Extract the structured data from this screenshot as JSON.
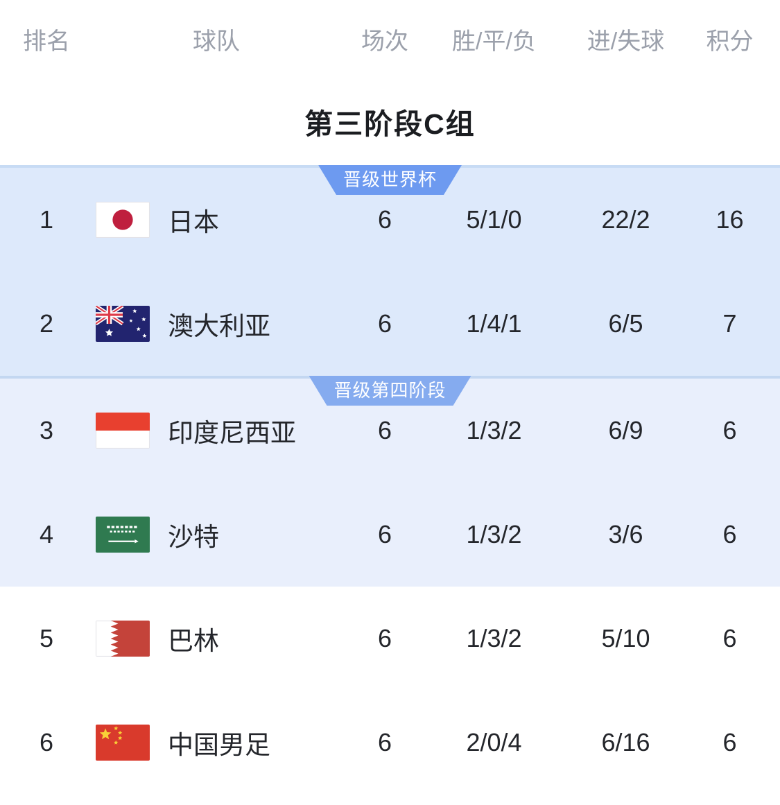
{
  "header": {
    "rank": "排名",
    "team": "球队",
    "matches": "场次",
    "wdl": "胜/平/负",
    "goals": "进/失球",
    "points": "积分"
  },
  "title": "第三阶段C组",
  "colors": {
    "header_text": "#9ba0ab",
    "row_text": "#24262b",
    "badge_world_cup": "#6d9af0",
    "badge_fourth_stage": "#85abef",
    "section_top_bg": "#dde9fb",
    "section_mid_bg": "#e9effc",
    "section_bottom_bg": "#ffffff"
  },
  "sections": [
    {
      "badge": "晋级世界杯",
      "badge_color": "#6d9af0",
      "bg": "#dde9fb",
      "border_top": "#c7dbf4",
      "rows": [
        {
          "rank": "1",
          "team": "日本",
          "flag": "japan",
          "matches": "6",
          "wdl": "5/1/0",
          "goals": "22/2",
          "points": "16"
        },
        {
          "rank": "2",
          "team": "澳大利亚",
          "flag": "australia",
          "matches": "6",
          "wdl": "1/4/1",
          "goals": "6/5",
          "points": "7"
        }
      ]
    },
    {
      "badge": "晋级第四阶段",
      "badge_color": "#85abef",
      "bg": "#e9effc",
      "border_top": "#c3d7f1",
      "rows": [
        {
          "rank": "3",
          "team": "印度尼西亚",
          "flag": "indonesia",
          "matches": "6",
          "wdl": "1/3/2",
          "goals": "6/9",
          "points": "6"
        },
        {
          "rank": "4",
          "team": "沙特",
          "flag": "saudi-arabia",
          "matches": "6",
          "wdl": "1/3/2",
          "goals": "3/6",
          "points": "6"
        }
      ]
    },
    {
      "badge": null,
      "badge_color": null,
      "bg": "#ffffff",
      "border_top": null,
      "rows": [
        {
          "rank": "5",
          "team": "巴林",
          "flag": "bahrain",
          "matches": "6",
          "wdl": "1/3/2",
          "goals": "5/10",
          "points": "6"
        },
        {
          "rank": "6",
          "team": "中国男足",
          "flag": "china",
          "matches": "6",
          "wdl": "2/0/4",
          "goals": "6/16",
          "points": "6"
        }
      ]
    }
  ]
}
